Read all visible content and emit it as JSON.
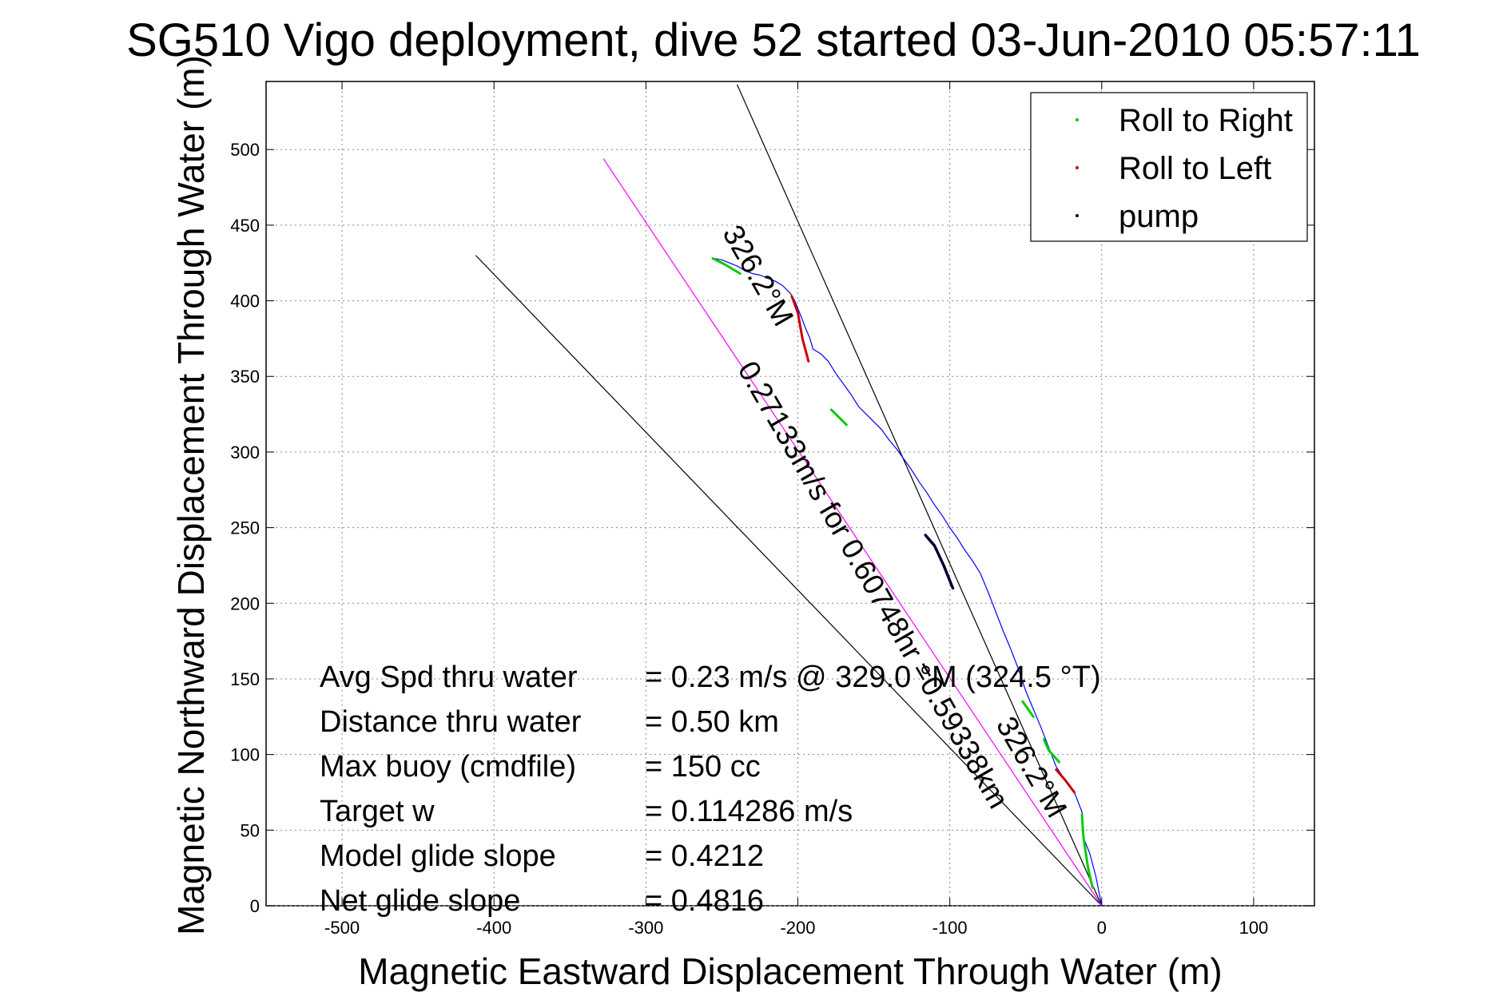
{
  "chart_data": {
    "type": "line",
    "title": "SG510 Vigo deployment, dive 52 started 03-Jun-2010 05:57:11",
    "xlabel": "Magnetic Eastward Displacement Through Water (m)",
    "ylabel": "Magnetic Northward Displacement Through Water (m)",
    "xlim": [
      -550,
      140
    ],
    "ylim": [
      0,
      545
    ],
    "xticks": [
      -500,
      -400,
      -300,
      -200,
      -100,
      0,
      100
    ],
    "yticks": [
      0,
      50,
      100,
      150,
      200,
      250,
      300,
      350,
      400,
      450,
      500
    ],
    "grid": true,
    "legend_position": "top-right",
    "legend": [
      {
        "label": "Roll to Right",
        "color": "#00cc00"
      },
      {
        "label": "Roll to Left",
        "color": "#cc0000"
      },
      {
        "label": "pump",
        "color": "#000033"
      }
    ],
    "track": {
      "name": "",
      "color": "#0000ff",
      "x": [
        0,
        -4,
        -8,
        -12,
        -13,
        -18,
        -24,
        -30,
        -35,
        -40,
        -45,
        -50,
        -55,
        -60,
        -65,
        -70,
        -75,
        -80,
        -85,
        -90,
        -95,
        -100,
        -105,
        -110,
        -115,
        -120,
        -125,
        -130,
        -135,
        -140,
        -145,
        -150,
        -155,
        -160,
        -165,
        -170,
        -175,
        -180,
        -185,
        -190,
        -192,
        -195,
        -198,
        -200,
        -202,
        -205,
        -210,
        -215,
        -220,
        -225,
        -230,
        -235,
        -240,
        -245,
        -250,
        -255
      ],
      "y": [
        0,
        20,
        35,
        45,
        62,
        75,
        83,
        92,
        105,
        118,
        130,
        142,
        157,
        170,
        182,
        195,
        208,
        220,
        228,
        235,
        243,
        250,
        258,
        265,
        273,
        280,
        288,
        295,
        302,
        308,
        315,
        320,
        325,
        330,
        338,
        345,
        352,
        360,
        365,
        368,
        375,
        382,
        390,
        395,
        400,
        405,
        410,
        413,
        415,
        417,
        418,
        420,
        423,
        425,
        427,
        428
      ]
    },
    "roll_right_segments": [
      {
        "x": [
          -6,
          -9,
          -12,
          -13
        ],
        "y": [
          12,
          25,
          45,
          60
        ]
      },
      {
        "x": [
          -28,
          -35,
          -38
        ],
        "y": [
          95,
          103,
          110
        ]
      },
      {
        "x": [
          -45,
          -52
        ],
        "y": [
          125,
          135
        ]
      },
      {
        "x": [
          -168,
          -178
        ],
        "y": [
          318,
          328
        ]
      },
      {
        "x": [
          -238,
          -248,
          -256
        ],
        "y": [
          418,
          424,
          428
        ]
      }
    ],
    "roll_left_segments": [
      {
        "x": [
          -18,
          -24,
          -30
        ],
        "y": [
          75,
          83,
          90
        ]
      },
      {
        "x": [
          -193,
          -197,
          -200,
          -204
        ],
        "y": [
          360,
          375,
          392,
          403
        ]
      }
    ],
    "pump_segments": [
      {
        "x": [
          -98,
          -104,
          -110,
          -116
        ],
        "y": [
          210,
          225,
          238,
          245
        ]
      }
    ],
    "reference_lines": [
      {
        "x": [
          0,
          -412
        ],
        "y": [
          0,
          430
        ],
        "color": "#000000"
      },
      {
        "x": [
          0,
          -240
        ],
        "y": [
          0,
          543
        ],
        "color": "#000000"
      },
      {
        "x": [
          0,
          -328
        ],
        "y": [
          0,
          494
        ],
        "color": "#ff00ff"
      }
    ],
    "annotations": [
      {
        "text": "326.2°M",
        "x": -250,
        "y": 445,
        "rotation": 60
      },
      {
        "text": "0.27133m/s for 0.60748hr =0.59338km",
        "x": -240,
        "y": 355,
        "rotation": 60
      },
      {
        "text": "326.2°M",
        "x": -70,
        "y": 120,
        "rotation": 60
      }
    ],
    "stats": [
      {
        "label": "Avg Spd thru water",
        "value": "=  0.23 m/s @ 329.0 °M (324.5 °T)"
      },
      {
        "label": "Distance thru water",
        "value": "=  0.50 km"
      },
      {
        "label": "Max buoy (cmdfile)",
        "value": "= 150 cc"
      },
      {
        "label": "Target w",
        "value": "= 0.114286 m/s"
      },
      {
        "label": "Model glide slope",
        "value": "= 0.4212"
      },
      {
        "label": "Net glide slope",
        "value": "= 0.4816"
      }
    ]
  }
}
